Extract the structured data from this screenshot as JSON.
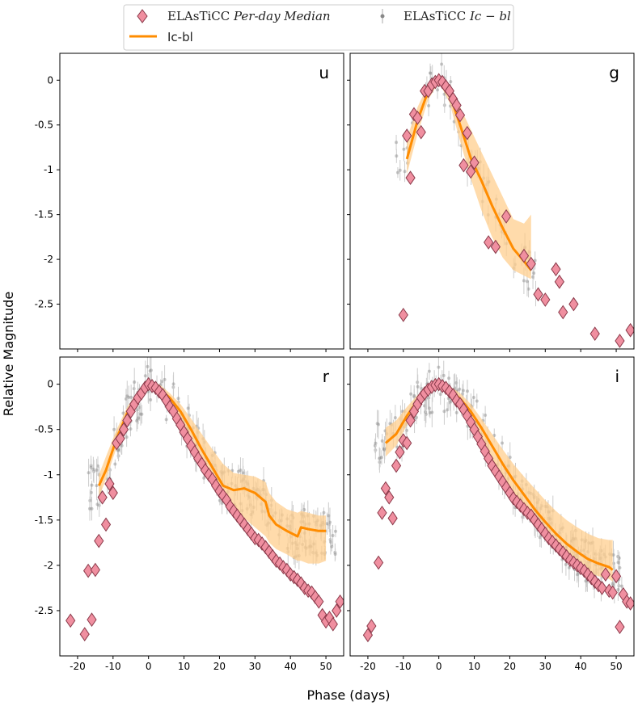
{
  "figure": {
    "xlabel": "Phase (days)",
    "ylabel": "Relative Magnitude"
  },
  "legend": {
    "median_label_prefix": "ELAsTiCC",
    "median_label_italic": "Per-day Median",
    "data_label_prefix": "ELAsTiCC",
    "data_label_italic": "Ic − bl",
    "model_label": "Ic-bl"
  },
  "colors": {
    "diamond_fill": "#f08fa0",
    "diamond_edge": "#8a3a4a",
    "model_line": "#ff8c00",
    "model_band": "#ffcf8f",
    "data_points": "#888888"
  },
  "chart_data": [
    {
      "type": "scatter",
      "panel": "u",
      "xlim": [
        -25,
        55
      ],
      "ylim": [
        -3.0,
        0.3
      ],
      "xticks": [
        -20,
        -10,
        0,
        10,
        20,
        30,
        40,
        50
      ],
      "yticks": [
        0,
        -0.5,
        -1,
        -1.5,
        -2,
        -2.5
      ],
      "median": {
        "x": [],
        "y": []
      },
      "model": null
    },
    {
      "type": "scatter",
      "panel": "g",
      "xlim": [
        -25,
        55
      ],
      "ylim": [
        -3.0,
        0.3
      ],
      "xticks": [
        -20,
        -10,
        0,
        10,
        20,
        30,
        40,
        50
      ],
      "yticks": [
        0,
        -0.5,
        -1,
        -1.5,
        -2,
        -2.5
      ],
      "median": {
        "x": [
          -10,
          -9,
          -8,
          -7,
          -6,
          -5,
          -4,
          -3,
          -2,
          -1,
          0,
          1,
          2,
          3,
          4,
          5,
          6,
          7,
          8,
          9,
          10,
          14,
          16,
          19,
          24,
          26,
          28,
          30,
          33,
          34,
          35,
          38,
          44,
          51,
          54
        ],
        "y": [
          -2.62,
          -0.62,
          -1.09,
          -0.38,
          -0.42,
          -0.58,
          -0.12,
          -0.12,
          -0.05,
          -0.02,
          0.0,
          -0.02,
          -0.07,
          -0.12,
          -0.21,
          -0.28,
          -0.39,
          -0.95,
          -0.59,
          -1.02,
          -0.92,
          -1.81,
          -1.86,
          -1.52,
          -1.96,
          -2.05,
          -2.39,
          -2.45,
          -2.11,
          -2.25,
          -2.59,
          -2.5,
          -2.83,
          -2.91,
          -2.79
        ]
      },
      "model": {
        "x": [
          -9,
          -6,
          -3,
          0,
          3,
          6,
          9,
          12,
          15,
          18,
          21,
          24,
          26
        ],
        "y": [
          -0.88,
          -0.45,
          -0.12,
          0.0,
          -0.15,
          -0.5,
          -0.87,
          -1.12,
          -1.4,
          -1.65,
          -1.88,
          -2.02,
          -2.12
        ],
        "upper": [
          -0.65,
          -0.3,
          -0.05,
          0.02,
          -0.05,
          -0.3,
          -0.55,
          -0.8,
          -1.05,
          -1.3,
          -1.55,
          -1.6,
          -1.5
        ],
        "lower": [
          -1.05,
          -0.6,
          -0.22,
          -0.02,
          -0.25,
          -0.68,
          -1.1,
          -1.45,
          -1.75,
          -1.98,
          -2.12,
          -2.18,
          -2.22
        ]
      }
    },
    {
      "type": "scatter",
      "panel": "r",
      "xlim": [
        -25,
        55
      ],
      "ylim": [
        -3.0,
        0.3
      ],
      "xticks": [
        -20,
        -10,
        0,
        10,
        20,
        30,
        40,
        50
      ],
      "yticks": [
        0,
        -0.5,
        -1,
        -1.5,
        -2,
        -2.5
      ],
      "median": {
        "x": [
          -22,
          -18,
          -17,
          -16,
          -15,
          -14,
          -13,
          -12,
          -11,
          -10,
          -9,
          -8,
          -7,
          -6,
          -5,
          -4,
          -3,
          -2,
          -1,
          0,
          1,
          2,
          3,
          4,
          5,
          6,
          7,
          8,
          9,
          10,
          11,
          12,
          13,
          14,
          15,
          16,
          17,
          18,
          19,
          20,
          21,
          22,
          23,
          24,
          25,
          26,
          27,
          28,
          29,
          30,
          31,
          32,
          33,
          34,
          35,
          36,
          37,
          38,
          39,
          40,
          41,
          42,
          43,
          44,
          45,
          46,
          47,
          48,
          49,
          50,
          51,
          52,
          53,
          54
        ],
        "y": [
          -2.61,
          -2.76,
          -2.06,
          -2.6,
          -2.05,
          -1.73,
          -1.25,
          -1.55,
          -1.1,
          -1.2,
          -0.65,
          -0.6,
          -0.5,
          -0.4,
          -0.3,
          -0.22,
          -0.15,
          -0.1,
          -0.04,
          0.0,
          -0.02,
          -0.04,
          -0.08,
          -0.12,
          -0.18,
          -0.25,
          -0.3,
          -0.38,
          -0.45,
          -0.53,
          -0.6,
          -0.68,
          -0.75,
          -0.82,
          -0.88,
          -0.95,
          -1.0,
          -1.05,
          -1.12,
          -1.18,
          -1.23,
          -1.28,
          -1.35,
          -1.4,
          -1.45,
          -1.5,
          -1.55,
          -1.6,
          -1.65,
          -1.7,
          -1.72,
          -1.76,
          -1.8,
          -1.85,
          -1.9,
          -1.95,
          -1.98,
          -2.02,
          -2.05,
          -2.1,
          -2.13,
          -2.16,
          -2.2,
          -2.25,
          -2.28,
          -2.3,
          -2.35,
          -2.4,
          -2.55,
          -2.62,
          -2.58,
          -2.65,
          -2.5,
          -2.4
        ]
      },
      "model": {
        "x": [
          -14,
          -12,
          -9,
          -6,
          -3,
          0,
          3,
          6,
          9,
          12,
          15,
          18,
          21,
          24,
          27,
          30,
          33,
          34,
          36,
          39,
          42,
          43,
          45,
          48,
          50
        ],
        "y": [
          -1.12,
          -0.95,
          -0.6,
          -0.32,
          -0.12,
          0.0,
          -0.05,
          -0.15,
          -0.3,
          -0.5,
          -0.72,
          -0.92,
          -1.12,
          -1.17,
          -1.15,
          -1.2,
          -1.3,
          -1.45,
          -1.55,
          -1.62,
          -1.68,
          -1.58,
          -1.6,
          -1.62,
          -1.62
        ],
        "upper": [
          -1.0,
          -0.8,
          -0.5,
          -0.25,
          -0.08,
          0.02,
          0.0,
          -0.1,
          -0.22,
          -0.38,
          -0.55,
          -0.72,
          -0.88,
          -0.98,
          -1.0,
          -1.02,
          -1.08,
          -1.2,
          -1.3,
          -1.38,
          -1.42,
          -1.4,
          -1.42,
          -1.45,
          -1.45
        ],
        "lower": [
          -1.25,
          -1.05,
          -0.7,
          -0.4,
          -0.15,
          -0.02,
          -0.1,
          -0.22,
          -0.38,
          -0.58,
          -0.82,
          -1.05,
          -1.28,
          -1.42,
          -1.48,
          -1.58,
          -1.68,
          -1.75,
          -1.82,
          -1.88,
          -1.95,
          -1.95,
          -1.98,
          -1.98,
          -1.95
        ]
      }
    },
    {
      "type": "scatter",
      "panel": "i",
      "xlim": [
        -25,
        55
      ],
      "ylim": [
        -3.0,
        0.3
      ],
      "xticks": [
        -20,
        -10,
        0,
        10,
        20,
        30,
        40,
        50
      ],
      "yticks": [
        0,
        -0.5,
        -1,
        -1.5,
        -2,
        -2.5
      ],
      "median": {
        "x": [
          -20,
          -19,
          -17,
          -16,
          -15,
          -14,
          -13,
          -12,
          -11,
          -10,
          -9,
          -8,
          -7,
          -6,
          -5,
          -4,
          -3,
          -2,
          -1,
          0,
          1,
          2,
          3,
          4,
          5,
          6,
          7,
          8,
          9,
          10,
          11,
          12,
          13,
          14,
          15,
          16,
          17,
          18,
          19,
          20,
          21,
          22,
          23,
          24,
          25,
          26,
          27,
          28,
          29,
          30,
          31,
          32,
          33,
          34,
          35,
          36,
          37,
          38,
          39,
          40,
          41,
          42,
          43,
          44,
          45,
          46,
          47,
          48,
          49,
          50,
          51,
          52,
          53,
          54
        ],
        "y": [
          -2.77,
          -2.67,
          -1.97,
          -1.42,
          -1.15,
          -1.25,
          -1.48,
          -0.9,
          -0.75,
          -0.62,
          -0.65,
          -0.4,
          -0.3,
          -0.22,
          -0.15,
          -0.1,
          -0.06,
          -0.03,
          -0.01,
          0.0,
          -0.02,
          -0.04,
          -0.08,
          -0.12,
          -0.18,
          -0.22,
          -0.28,
          -0.35,
          -0.42,
          -0.5,
          -0.58,
          -0.66,
          -0.74,
          -0.82,
          -0.9,
          -0.96,
          -1.02,
          -1.08,
          -1.14,
          -1.2,
          -1.26,
          -1.3,
          -1.34,
          -1.38,
          -1.42,
          -1.45,
          -1.5,
          -1.55,
          -1.6,
          -1.65,
          -1.7,
          -1.74,
          -1.78,
          -1.82,
          -1.86,
          -1.9,
          -1.94,
          -1.97,
          -2.0,
          -2.03,
          -2.06,
          -2.1,
          -2.14,
          -2.18,
          -2.22,
          -2.25,
          -2.1,
          -2.28,
          -2.3,
          -2.12,
          -2.68,
          -2.32,
          -2.4,
          -2.42
        ]
      },
      "model": {
        "x": [
          -15,
          -12,
          -9,
          -6,
          -3,
          0,
          3,
          6,
          9,
          12,
          15,
          18,
          21,
          24,
          27,
          30,
          33,
          36,
          39,
          42,
          45,
          48,
          49
        ],
        "y": [
          -0.65,
          -0.55,
          -0.35,
          -0.18,
          -0.06,
          0.0,
          -0.06,
          -0.16,
          -0.3,
          -0.48,
          -0.68,
          -0.88,
          -1.06,
          -1.22,
          -1.38,
          -1.52,
          -1.65,
          -1.76,
          -1.85,
          -1.93,
          -1.98,
          -2.02,
          -2.05
        ],
        "upper": [
          -0.48,
          -0.4,
          -0.25,
          -0.12,
          -0.03,
          0.02,
          -0.02,
          -0.1,
          -0.22,
          -0.38,
          -0.55,
          -0.72,
          -0.88,
          -1.02,
          -1.15,
          -1.28,
          -1.4,
          -1.5,
          -1.58,
          -1.65,
          -1.7,
          -1.72,
          -1.72
        ],
        "lower": [
          -0.8,
          -0.68,
          -0.45,
          -0.25,
          -0.1,
          -0.02,
          -0.1,
          -0.22,
          -0.38,
          -0.6,
          -0.82,
          -1.02,
          -1.22,
          -1.4,
          -1.55,
          -1.7,
          -1.82,
          -1.92,
          -2.0,
          -2.08,
          -2.12,
          -2.15,
          -2.18
        ]
      }
    }
  ]
}
